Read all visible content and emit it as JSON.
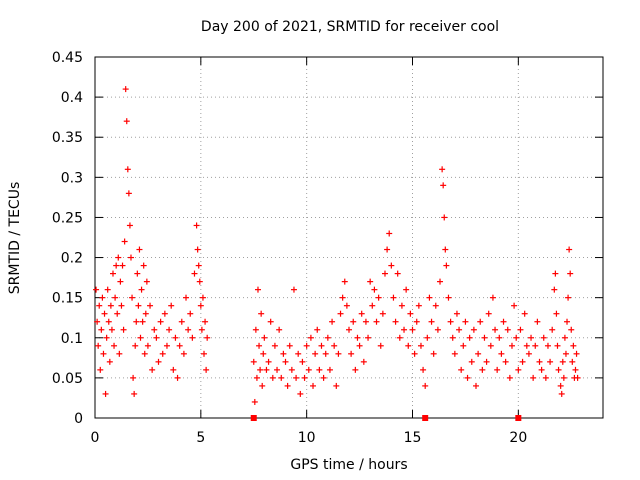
{
  "chart_data": {
    "type": "scatter",
    "title": "Day 200 of 2021, SRMTID for receiver cool",
    "xlabel": "GPS time / hours",
    "ylabel": "SRMTID / TECUs",
    "xlim": [
      0,
      24
    ],
    "ylim": [
      0,
      0.45
    ],
    "grid": true,
    "marker": "+",
    "color": "#ff0000",
    "x_ticks": [
      0,
      5,
      10,
      15,
      20
    ],
    "x_tick_labels": [
      "0",
      "5",
      "10",
      "15",
      "20"
    ],
    "y_ticks": [
      0,
      0.05,
      0.1,
      0.15,
      0.2,
      0.25,
      0.3,
      0.35,
      0.4,
      0.45
    ],
    "y_tick_labels": [
      "0",
      "0.05",
      "0.1",
      "0.15",
      "0.2",
      "0.25",
      "0.3",
      "0.35",
      "0.4",
      "0.45"
    ],
    "series": [
      {
        "name": "SRMTID",
        "points": [
          [
            0.05,
            0.16
          ],
          [
            0.1,
            0.12
          ],
          [
            0.15,
            0.09
          ],
          [
            0.2,
            0.14
          ],
          [
            0.25,
            0.06
          ],
          [
            0.3,
            0.11
          ],
          [
            0.35,
            0.15
          ],
          [
            0.4,
            0.08
          ],
          [
            0.45,
            0.13
          ],
          [
            0.5,
            0.03
          ],
          [
            0.55,
            0.1
          ],
          [
            0.6,
            0.16
          ],
          [
            0.65,
            0.12
          ],
          [
            0.7,
            0.07
          ],
          [
            0.75,
            0.14
          ],
          [
            0.8,
            0.11
          ],
          [
            0.85,
            0.18
          ],
          [
            0.9,
            0.09
          ],
          [
            0.95,
            0.15
          ],
          [
            1.0,
            0.19
          ],
          [
            1.05,
            0.13
          ],
          [
            1.1,
            0.2
          ],
          [
            1.15,
            0.08
          ],
          [
            1.2,
            0.17
          ],
          [
            1.25,
            0.14
          ],
          [
            1.3,
            0.19
          ],
          [
            1.35,
            0.11
          ],
          [
            1.4,
            0.22
          ],
          [
            1.45,
            0.41
          ],
          [
            1.5,
            0.37
          ],
          [
            1.55,
            0.31
          ],
          [
            1.6,
            0.28
          ],
          [
            1.65,
            0.24
          ],
          [
            1.7,
            0.2
          ],
          [
            1.75,
            0.15
          ],
          [
            1.8,
            0.05
          ],
          [
            1.85,
            0.03
          ],
          [
            1.9,
            0.09
          ],
          [
            1.95,
            0.12
          ],
          [
            2.0,
            0.18
          ],
          [
            2.05,
            0.14
          ],
          [
            2.1,
            0.21
          ],
          [
            2.15,
            0.1
          ],
          [
            2.2,
            0.16
          ],
          [
            2.25,
            0.12
          ],
          [
            2.3,
            0.19
          ],
          [
            2.35,
            0.08
          ],
          [
            2.4,
            0.13
          ],
          [
            2.45,
            0.17
          ],
          [
            2.5,
            0.09
          ],
          [
            2.6,
            0.14
          ],
          [
            2.7,
            0.06
          ],
          [
            2.8,
            0.11
          ],
          [
            2.9,
            0.1
          ],
          [
            3.0,
            0.07
          ],
          [
            3.1,
            0.12
          ],
          [
            3.2,
            0.08
          ],
          [
            3.3,
            0.13
          ],
          [
            3.4,
            0.09
          ],
          [
            3.5,
            0.11
          ],
          [
            3.6,
            0.14
          ],
          [
            3.7,
            0.06
          ],
          [
            3.8,
            0.1
          ],
          [
            3.9,
            0.05
          ],
          [
            4.0,
            0.09
          ],
          [
            4.1,
            0.12
          ],
          [
            4.2,
            0.08
          ],
          [
            4.3,
            0.15
          ],
          [
            4.4,
            0.11
          ],
          [
            4.5,
            0.13
          ],
          [
            4.6,
            0.1
          ],
          [
            4.7,
            0.18
          ],
          [
            4.8,
            0.24
          ],
          [
            4.85,
            0.21
          ],
          [
            4.9,
            0.19
          ],
          [
            4.95,
            0.17
          ],
          [
            5.0,
            0.14
          ],
          [
            5.05,
            0.11
          ],
          [
            5.1,
            0.15
          ],
          [
            5.15,
            0.08
          ],
          [
            5.2,
            0.12
          ],
          [
            5.25,
            0.06
          ],
          [
            5.3,
            0.1
          ],
          [
            7.5,
            0.07
          ],
          [
            7.55,
            0.02
          ],
          [
            7.6,
            0.11
          ],
          [
            7.65,
            0.05
          ],
          [
            7.7,
            0.16
          ],
          [
            7.75,
            0.09
          ],
          [
            7.8,
            0.06
          ],
          [
            7.85,
            0.13
          ],
          [
            7.9,
            0.04
          ],
          [
            7.95,
            0.08
          ],
          [
            8.0,
            0.1
          ],
          [
            8.1,
            0.06
          ],
          [
            8.2,
            0.07
          ],
          [
            8.3,
            0.12
          ],
          [
            8.4,
            0.05
          ],
          [
            8.5,
            0.09
          ],
          [
            8.6,
            0.06
          ],
          [
            8.7,
            0.11
          ],
          [
            8.8,
            0.05
          ],
          [
            8.9,
            0.08
          ],
          [
            9.0,
            0.07
          ],
          [
            9.1,
            0.04
          ],
          [
            9.2,
            0.09
          ],
          [
            9.3,
            0.06
          ],
          [
            9.4,
            0.16
          ],
          [
            9.5,
            0.05
          ],
          [
            9.6,
            0.08
          ],
          [
            9.7,
            0.03
          ],
          [
            9.8,
            0.07
          ],
          [
            9.9,
            0.05
          ],
          [
            10.0,
            0.09
          ],
          [
            10.1,
            0.06
          ],
          [
            10.2,
            0.1
          ],
          [
            10.3,
            0.04
          ],
          [
            10.4,
            0.08
          ],
          [
            10.5,
            0.11
          ],
          [
            10.6,
            0.06
          ],
          [
            10.7,
            0.09
          ],
          [
            10.8,
            0.05
          ],
          [
            10.9,
            0.08
          ],
          [
            11.0,
            0.1
          ],
          [
            11.1,
            0.06
          ],
          [
            11.2,
            0.12
          ],
          [
            11.3,
            0.09
          ],
          [
            11.4,
            0.04
          ],
          [
            11.5,
            0.08
          ],
          [
            11.6,
            0.13
          ],
          [
            11.7,
            0.15
          ],
          [
            11.8,
            0.17
          ],
          [
            11.9,
            0.14
          ],
          [
            12.0,
            0.11
          ],
          [
            12.1,
            0.08
          ],
          [
            12.2,
            0.12
          ],
          [
            12.3,
            0.06
          ],
          [
            12.4,
            0.1
          ],
          [
            12.5,
            0.09
          ],
          [
            12.6,
            0.13
          ],
          [
            12.7,
            0.07
          ],
          [
            12.8,
            0.12
          ],
          [
            12.9,
            0.1
          ],
          [
            13.0,
            0.17
          ],
          [
            13.1,
            0.14
          ],
          [
            13.2,
            0.16
          ],
          [
            13.3,
            0.12
          ],
          [
            13.4,
            0.15
          ],
          [
            13.5,
            0.09
          ],
          [
            13.6,
            0.13
          ],
          [
            13.7,
            0.18
          ],
          [
            13.8,
            0.21
          ],
          [
            13.9,
            0.23
          ],
          [
            14.0,
            0.19
          ],
          [
            14.1,
            0.15
          ],
          [
            14.2,
            0.12
          ],
          [
            14.3,
            0.18
          ],
          [
            14.4,
            0.1
          ],
          [
            14.5,
            0.14
          ],
          [
            14.6,
            0.11
          ],
          [
            14.7,
            0.16
          ],
          [
            14.8,
            0.09
          ],
          [
            14.9,
            0.13
          ],
          [
            15.0,
            0.11
          ],
          [
            15.1,
            0.08
          ],
          [
            15.2,
            0.12
          ],
          [
            15.3,
            0.14
          ],
          [
            15.4,
            0.09
          ],
          [
            15.5,
            0.06
          ],
          [
            15.6,
            0.04
          ],
          [
            15.7,
            0.1
          ],
          [
            15.8,
            0.15
          ],
          [
            15.9,
            0.12
          ],
          [
            16.0,
            0.08
          ],
          [
            16.1,
            0.14
          ],
          [
            16.2,
            0.11
          ],
          [
            16.3,
            0.17
          ],
          [
            16.4,
            0.31
          ],
          [
            16.45,
            0.29
          ],
          [
            16.5,
            0.25
          ],
          [
            16.55,
            0.21
          ],
          [
            16.6,
            0.19
          ],
          [
            16.7,
            0.15
          ],
          [
            16.8,
            0.12
          ],
          [
            16.9,
            0.1
          ],
          [
            17.0,
            0.08
          ],
          [
            17.1,
            0.13
          ],
          [
            17.2,
            0.11
          ],
          [
            17.3,
            0.06
          ],
          [
            17.4,
            0.09
          ],
          [
            17.5,
            0.12
          ],
          [
            17.6,
            0.05
          ],
          [
            17.7,
            0.1
          ],
          [
            17.8,
            0.07
          ],
          [
            17.9,
            0.11
          ],
          [
            18.0,
            0.04
          ],
          [
            18.1,
            0.08
          ],
          [
            18.2,
            0.12
          ],
          [
            18.3,
            0.06
          ],
          [
            18.4,
            0.1
          ],
          [
            18.5,
            0.07
          ],
          [
            18.6,
            0.13
          ],
          [
            18.7,
            0.09
          ],
          [
            18.8,
            0.15
          ],
          [
            18.9,
            0.11
          ],
          [
            19.0,
            0.06
          ],
          [
            19.1,
            0.1
          ],
          [
            19.2,
            0.08
          ],
          [
            19.3,
            0.12
          ],
          [
            19.4,
            0.07
          ],
          [
            19.5,
            0.11
          ],
          [
            19.6,
            0.05
          ],
          [
            19.7,
            0.09
          ],
          [
            19.8,
            0.14
          ],
          [
            19.9,
            0.1
          ],
          [
            20.0,
            0.06
          ],
          [
            20.1,
            0.11
          ],
          [
            20.2,
            0.07
          ],
          [
            20.3,
            0.13
          ],
          [
            20.4,
            0.09
          ],
          [
            20.5,
            0.08
          ],
          [
            20.6,
            0.1
          ],
          [
            20.7,
            0.05
          ],
          [
            20.8,
            0.09
          ],
          [
            20.9,
            0.12
          ],
          [
            21.0,
            0.07
          ],
          [
            21.1,
            0.06
          ],
          [
            21.2,
            0.1
          ],
          [
            21.3,
            0.05
          ],
          [
            21.4,
            0.09
          ],
          [
            21.5,
            0.07
          ],
          [
            21.6,
            0.11
          ],
          [
            21.7,
            0.16
          ],
          [
            21.75,
            0.18
          ],
          [
            21.8,
            0.13
          ],
          [
            21.85,
            0.09
          ],
          [
            21.9,
            0.06
          ],
          [
            22.0,
            0.04
          ],
          [
            22.05,
            0.03
          ],
          [
            22.1,
            0.07
          ],
          [
            22.15,
            0.05
          ],
          [
            22.2,
            0.1
          ],
          [
            22.25,
            0.08
          ],
          [
            22.3,
            0.12
          ],
          [
            22.35,
            0.15
          ],
          [
            22.4,
            0.21
          ],
          [
            22.45,
            0.18
          ],
          [
            22.5,
            0.11
          ],
          [
            22.55,
            0.07
          ],
          [
            22.6,
            0.09
          ],
          [
            22.65,
            0.05
          ],
          [
            22.7,
            0.06
          ],
          [
            22.75,
            0.08
          ],
          [
            22.8,
            0.05
          ]
        ]
      }
    ],
    "zero_markers": [
      7.5,
      15.6,
      20.0
    ]
  }
}
